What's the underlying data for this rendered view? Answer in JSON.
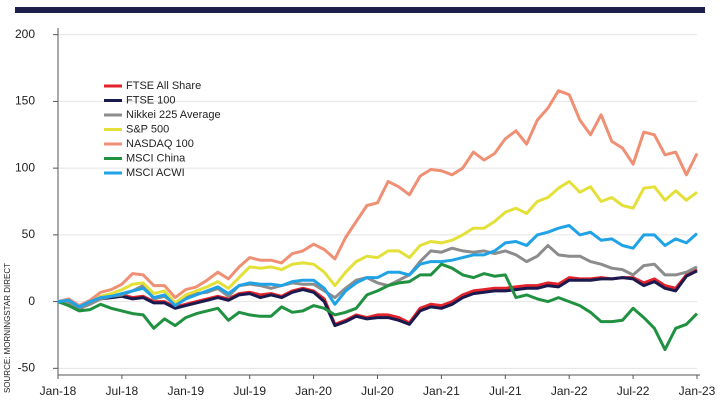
{
  "chart_data": {
    "type": "line",
    "source": "SOURCE: MORNINGSTAR DIRECT",
    "categories": [
      "Jan-18",
      null,
      null,
      null,
      null,
      null,
      "Jul-18",
      null,
      null,
      null,
      null,
      null,
      "Jan-19",
      null,
      null,
      null,
      null,
      null,
      "Jul-19",
      null,
      null,
      null,
      null,
      null,
      "Jan-20",
      null,
      null,
      null,
      null,
      null,
      "Jul-20",
      null,
      null,
      null,
      null,
      null,
      "Jan-21",
      null,
      null,
      null,
      null,
      null,
      "Jul-21",
      null,
      null,
      null,
      null,
      null,
      "Jan-22",
      null,
      null,
      null,
      null,
      null,
      "Jul-22",
      null,
      null,
      null,
      null,
      null,
      "Jan-23"
    ],
    "series": [
      {
        "name": "FTSE All Share",
        "color": "#e3232b",
        "values": [
          0,
          -2,
          -6,
          0,
          3,
          4,
          5,
          3,
          4,
          0,
          0,
          -4,
          -2,
          0,
          2,
          4,
          2,
          6,
          7,
          5,
          6,
          4,
          8,
          10,
          8,
          2,
          -17,
          -14,
          -10,
          -12,
          -10,
          -10,
          -12,
          -16,
          -5,
          -2,
          -3,
          0,
          5,
          8,
          9,
          10,
          10,
          11,
          12,
          12,
          14,
          13,
          18,
          17,
          17,
          18,
          17,
          18,
          18,
          14,
          17,
          12,
          10,
          20,
          24
        ]
      },
      {
        "name": "FTSE 100",
        "color": "#1b1a4f",
        "values": [
          0,
          -2,
          -6,
          0,
          2,
          3,
          4,
          2,
          3,
          -1,
          -1,
          -5,
          -3,
          -1,
          1,
          3,
          1,
          5,
          6,
          3,
          5,
          3,
          7,
          9,
          7,
          0,
          -18,
          -15,
          -11,
          -13,
          -12,
          -12,
          -14,
          -17,
          -7,
          -4,
          -5,
          -2,
          3,
          6,
          7,
          8,
          8,
          9,
          10,
          10,
          12,
          11,
          16,
          16,
          16,
          17,
          17,
          18,
          17,
          12,
          15,
          10,
          8,
          19,
          23
        ]
      },
      {
        "name": "Nikkei 225 Average",
        "color": "#8c8c8c",
        "values": [
          0,
          -1,
          -5,
          -2,
          2,
          4,
          5,
          8,
          12,
          2,
          4,
          -2,
          4,
          6,
          7,
          10,
          4,
          12,
          13,
          12,
          10,
          12,
          14,
          13,
          13,
          8,
          3,
          10,
          16,
          18,
          14,
          12,
          16,
          20,
          30,
          38,
          37,
          40,
          38,
          37,
          38,
          36,
          38,
          35,
          30,
          34,
          42,
          35,
          34,
          34,
          30,
          28,
          25,
          24,
          20,
          27,
          28,
          20,
          20,
          22,
          26
        ]
      },
      {
        "name": "S&P 500",
        "color": "#e3e03a",
        "values": [
          0,
          1,
          -3,
          0,
          4,
          6,
          9,
          13,
          14,
          6,
          8,
          -1,
          5,
          8,
          11,
          15,
          10,
          18,
          26,
          25,
          26,
          24,
          28,
          29,
          28,
          22,
          12,
          22,
          30,
          34,
          33,
          38,
          38,
          33,
          42,
          45,
          44,
          46,
          50,
          55,
          55,
          60,
          67,
          70,
          66,
          75,
          78,
          85,
          90,
          82,
          86,
          75,
          78,
          72,
          70,
          85,
          86,
          76,
          83,
          76,
          82
        ]
      },
      {
        "name": "NASDAQ 100",
        "color": "#ef8f73",
        "values": [
          0,
          2,
          -3,
          1,
          7,
          9,
          13,
          21,
          20,
          12,
          12,
          3,
          9,
          11,
          16,
          22,
          17,
          26,
          33,
          31,
          31,
          29,
          36,
          38,
          43,
          39,
          32,
          48,
          60,
          72,
          74,
          90,
          86,
          80,
          94,
          99,
          98,
          95,
          100,
          112,
          106,
          111,
          122,
          128,
          118,
          136,
          145,
          158,
          155,
          136,
          125,
          140,
          120,
          115,
          103,
          127,
          125,
          110,
          112,
          95,
          111
        ]
      },
      {
        "name": "MSCI China",
        "color": "#1f9140",
        "values": [
          0,
          -3,
          -7,
          -6,
          -2,
          -5,
          -7,
          -9,
          -10,
          -20,
          -13,
          -18,
          -12,
          -9,
          -7,
          -5,
          -14,
          -8,
          -10,
          -11,
          -11,
          -4,
          -8,
          -7,
          -3,
          -5,
          -10,
          -8,
          -5,
          5,
          8,
          12,
          14,
          15,
          20,
          20,
          28,
          25,
          20,
          18,
          21,
          19,
          20,
          3,
          5,
          2,
          0,
          3,
          0,
          -3,
          -8,
          -15,
          -15,
          -14,
          -5,
          -12,
          -20,
          -36,
          -20,
          -17,
          -9
        ]
      },
      {
        "name": "MSCI ACWI",
        "color": "#1fa3e6",
        "values": [
          0,
          1,
          -4,
          0,
          3,
          4,
          6,
          8,
          10,
          3,
          5,
          -3,
          2,
          5,
          8,
          11,
          6,
          12,
          14,
          13,
          13,
          12,
          15,
          16,
          16,
          10,
          -2,
          8,
          14,
          18,
          18,
          22,
          22,
          20,
          28,
          30,
          30,
          31,
          33,
          35,
          35,
          38,
          44,
          45,
          42,
          50,
          52,
          55,
          57,
          50,
          52,
          46,
          47,
          42,
          40,
          50,
          50,
          42,
          47,
          44,
          51
        ]
      }
    ],
    "ylim": [
      -55,
      205
    ],
    "yticks": [
      -50,
      0,
      50,
      100,
      150,
      200
    ],
    "grid": true,
    "legend": "upper left"
  }
}
